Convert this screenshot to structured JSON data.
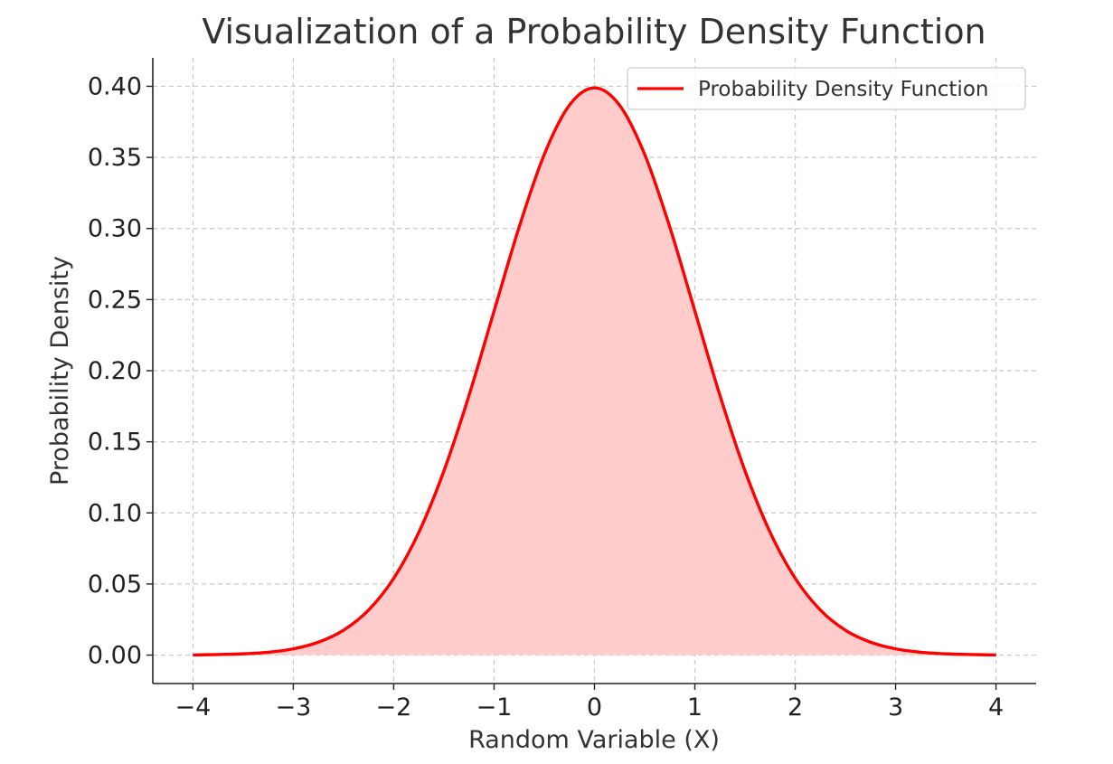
{
  "chart_data": {
    "type": "area",
    "title": "Visualization of a Probability Density Function",
    "xlabel": "Random Variable (X)",
    "ylabel": "Probability Density",
    "xlim": [
      -4.4,
      4.4
    ],
    "ylim": [
      -0.02,
      0.42
    ],
    "xticks": [
      -4,
      -3,
      -2,
      -1,
      0,
      1,
      2,
      3,
      4
    ],
    "xtick_labels": [
      "−4",
      "−3",
      "−2",
      "−1",
      "0",
      "1",
      "2",
      "3",
      "4"
    ],
    "yticks": [
      0.0,
      0.05,
      0.1,
      0.15,
      0.2,
      0.25,
      0.3,
      0.35,
      0.4
    ],
    "ytick_labels": [
      "0.00",
      "0.05",
      "0.10",
      "0.15",
      "0.20",
      "0.25",
      "0.30",
      "0.35",
      "0.40"
    ],
    "grid": true,
    "legend": {
      "position": "top-right",
      "entries": [
        "Probability Density Function"
      ]
    },
    "series": [
      {
        "name": "Probability Density Function",
        "color": "#ff0000",
        "fill_color": "#ffcccc",
        "x": [
          -4.0,
          -3.75,
          -3.5,
          -3.25,
          -3.0,
          -2.75,
          -2.5,
          -2.25,
          -2.0,
          -1.75,
          -1.5,
          -1.25,
          -1.0,
          -0.75,
          -0.5,
          -0.25,
          0.0,
          0.25,
          0.5,
          0.75,
          1.0,
          1.25,
          1.5,
          1.75,
          2.0,
          2.25,
          2.5,
          2.75,
          3.0,
          3.25,
          3.5,
          3.75,
          4.0
        ],
        "y": [
          0.0001,
          0.0004,
          0.0009,
          0.002,
          0.0044,
          0.0091,
          0.0175,
          0.0317,
          0.054,
          0.0863,
          0.1295,
          0.1826,
          0.242,
          0.3011,
          0.3521,
          0.3867,
          0.3989,
          0.3867,
          0.3521,
          0.3011,
          0.242,
          0.1826,
          0.1295,
          0.0863,
          0.054,
          0.0317,
          0.0175,
          0.0091,
          0.0044,
          0.002,
          0.0009,
          0.0004,
          0.0001
        ]
      }
    ]
  }
}
